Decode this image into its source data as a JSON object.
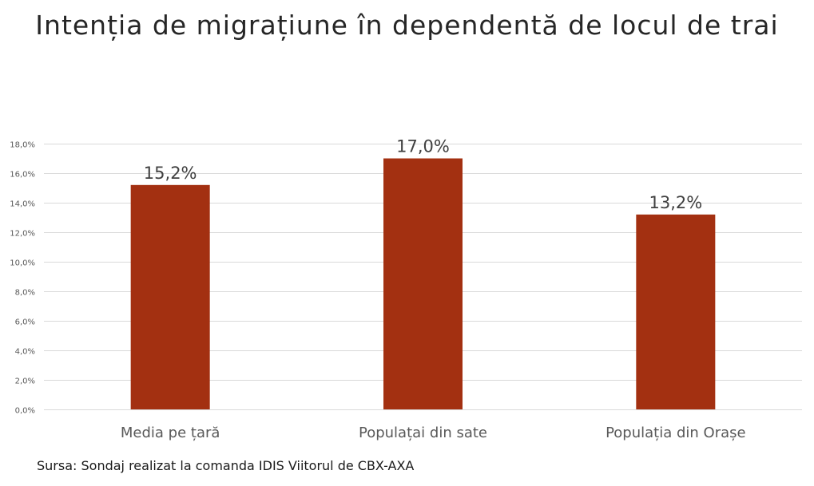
{
  "chart_data": {
    "type": "bar",
    "title": "Intenția de migrațiune în dependentă de locul de trai",
    "categories": [
      "Media pe țară",
      "Populațai din sate",
      "Populația din Orașe"
    ],
    "values": [
      15.2,
      17.0,
      13.2
    ],
    "data_labels": [
      "15,2%",
      "17,0%",
      "13,2%"
    ],
    "ylim": [
      0,
      18
    ],
    "yticks": [
      0,
      2,
      4,
      6,
      8,
      10,
      12,
      14,
      16,
      18
    ],
    "ytick_labels": [
      "0,0%",
      "2,0%",
      "4,0%",
      "6,0%",
      "8,0%",
      "10,0%",
      "12,0%",
      "14,0%",
      "16,0%",
      "18,0%"
    ],
    "xlabel": "",
    "ylabel": "",
    "grid": true,
    "legend": "none",
    "bar_color": "#A33011",
    "grid_color": "#D9D9D9"
  },
  "source": "Sursa: Sondaj realizat la comanda IDIS Viitorul de CBX-AXA"
}
